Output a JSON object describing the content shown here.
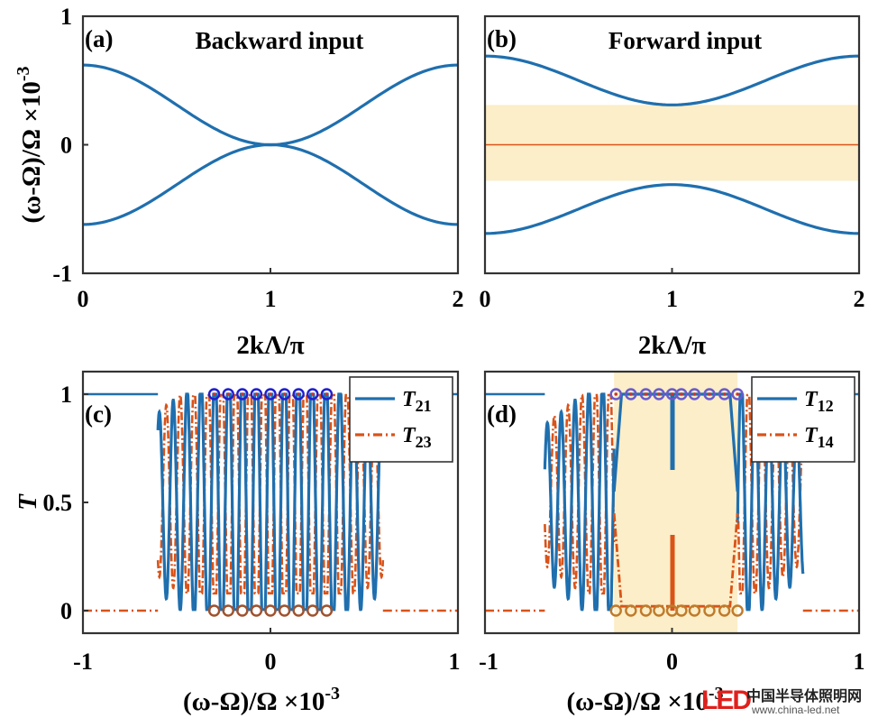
{
  "chart_data": [
    {
      "panel": "a",
      "type": "line",
      "label": "(a)",
      "title": "Backward input",
      "xlabel": "2kΛ/π",
      "ylabel": "(ω-Ω)/Ω ×10",
      "ylabel_exp": "-3",
      "xlim": [
        0,
        2
      ],
      "ylim": [
        -1,
        1
      ],
      "xticks": [
        "0",
        "1",
        "2"
      ],
      "yticks": [
        "-1",
        "0",
        "1"
      ],
      "series_color": "#1f6fae",
      "bands": [
        {
          "x": [
            0,
            0.25,
            0.5,
            0.75,
            1,
            1.25,
            1.5,
            1.75,
            2
          ],
          "y": [
            0.62,
            0.56,
            0.43,
            0.23,
            0.0,
            -0.23,
            -0.43,
            -0.56,
            -0.62
          ]
        },
        {
          "x": [
            0,
            0.25,
            0.5,
            0.75,
            1,
            1.25,
            1.5,
            1.75,
            2
          ],
          "y": [
            -0.62,
            -0.56,
            -0.43,
            -0.23,
            0.0,
            0.23,
            0.43,
            0.56,
            0.62
          ]
        }
      ]
    },
    {
      "panel": "b",
      "type": "line",
      "label": "(b)",
      "title": "Forward input",
      "xlabel": "2kΛ/π",
      "xlim": [
        0,
        2
      ],
      "ylim": [
        -1,
        1
      ],
      "xticks": [
        "0",
        "1",
        "2"
      ],
      "series_color": "#1f6fae",
      "gap_band": {
        "y": [
          -0.28,
          0.31
        ],
        "color": "#fbeec8"
      },
      "center_line": {
        "y": 0.0,
        "color": "#d95319"
      },
      "bands": [
        {
          "x": [
            0,
            0.25,
            0.5,
            0.75,
            1,
            1.25,
            1.5,
            1.75,
            2
          ],
          "y": [
            0.69,
            0.65,
            0.53,
            0.39,
            0.31,
            0.39,
            0.53,
            0.65,
            0.69
          ]
        },
        {
          "x": [
            0,
            0.25,
            0.5,
            0.75,
            1,
            1.25,
            1.5,
            1.75,
            2
          ],
          "y": [
            -0.69,
            -0.65,
            -0.53,
            -0.39,
            -0.31,
            -0.39,
            -0.53,
            -0.65,
            -0.69
          ]
        }
      ]
    },
    {
      "panel": "c",
      "type": "line",
      "label": "(c)",
      "ylabel": "T",
      "xlabel": "(ω-Ω)/Ω ×10",
      "xlabel_exp": "-3",
      "xlim": [
        -1,
        1
      ],
      "ylim": [
        0,
        1
      ],
      "xticks": [
        "-1",
        "0",
        "1"
      ],
      "yticks": [
        "0",
        "0.5",
        "1"
      ],
      "passband": [
        -0.6,
        0.6
      ],
      "legend": [
        {
          "name": "T",
          "sub": "21",
          "color": "#1f6fae",
          "style": "solid"
        },
        {
          "name": "T",
          "sub": "23",
          "color": "#d95319",
          "style": "dashdot"
        }
      ],
      "markers_top": {
        "x": [
          -0.3,
          -0.225,
          -0.15,
          -0.075,
          0.0,
          0.075,
          0.15,
          0.225,
          0.3
        ],
        "y": 1,
        "color": "#1f1fd0"
      },
      "markers_bottom": {
        "x": [
          -0.3,
          -0.225,
          -0.15,
          -0.075,
          0.0,
          0.075,
          0.15,
          0.225,
          0.3
        ],
        "y": 0,
        "color": "#a0522d"
      }
    },
    {
      "panel": "d",
      "type": "line",
      "label": "(d)",
      "xlabel": "(ω-Ω)/Ω ×10",
      "xlabel_exp": "-3",
      "xlim": [
        -1,
        1
      ],
      "ylim": [
        0,
        1
      ],
      "xticks": [
        "-1",
        "0",
        "1"
      ],
      "passband": [
        -0.68,
        0.7
      ],
      "gap_band": {
        "x": [
          -0.31,
          0.35
        ],
        "color": "#fbeec8"
      },
      "center_gap": [
        -0.02,
        0.05
      ],
      "legend": [
        {
          "name": "T",
          "sub": "12",
          "color": "#1f6fae",
          "style": "solid"
        },
        {
          "name": "T",
          "sub": "14",
          "color": "#d95319",
          "style": "dashdot"
        }
      ],
      "markers_top": {
        "x": [
          -0.3,
          -0.22,
          -0.14,
          -0.07,
          0.0,
          0.05,
          0.12,
          0.2,
          0.28,
          0.35
        ],
        "y": 1,
        "color": "#6a5acd"
      },
      "markers_bottom": {
        "x": [
          -0.3,
          -0.22,
          -0.14,
          -0.07,
          0.0,
          0.05,
          0.12,
          0.2,
          0.28,
          0.35
        ],
        "y": 0,
        "color": "#c07a2a"
      }
    }
  ],
  "watermark": {
    "logo": "LED",
    "name": "中国半导体照明网",
    "url": "www.china-led.net"
  }
}
